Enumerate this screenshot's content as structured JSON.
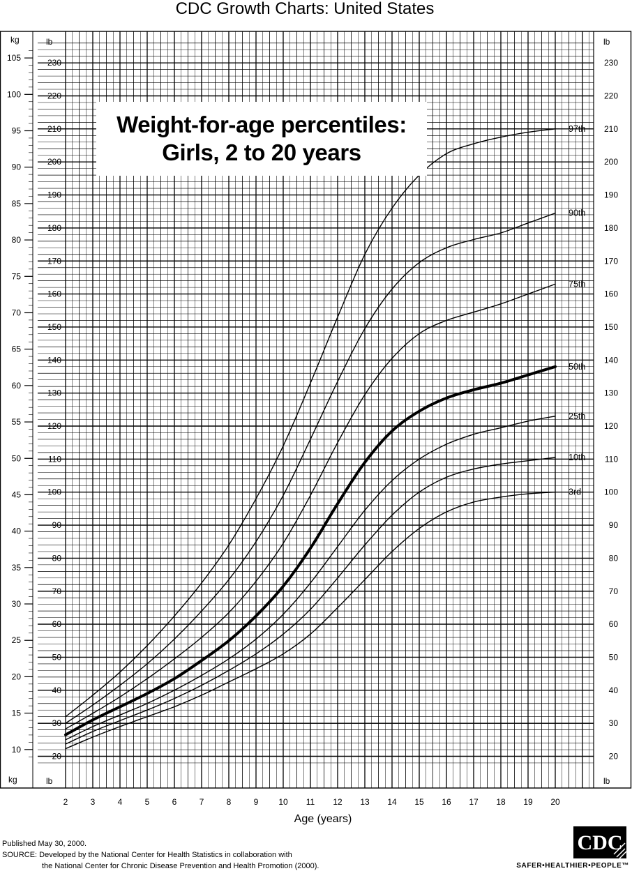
{
  "header": {
    "title": "CDC Growth Charts: United States"
  },
  "chart_data": {
    "type": "line",
    "title_line1": "Weight-for-age percentiles:",
    "title_line2": "Girls, 2 to 20 years",
    "xlabel": "Age (years)",
    "xlim": [
      2,
      20
    ],
    "x_ticks": [
      2,
      3,
      4,
      5,
      6,
      7,
      8,
      9,
      10,
      11,
      12,
      13,
      14,
      15,
      16,
      17,
      18,
      19,
      20
    ],
    "ylim_lb": [
      16,
      236
    ],
    "left_unit_top": "kg",
    "left_unit_bottom": "kg",
    "inner_unit_top": "lb",
    "inner_unit_bottom": "lb",
    "right_unit_top": "lb",
    "right_unit_bottom": "lb",
    "kg_ticks": [
      10,
      15,
      20,
      25,
      30,
      35,
      40,
      45,
      50,
      55,
      60,
      65,
      70,
      75,
      80,
      85,
      90,
      95,
      100,
      105
    ],
    "lb_ticks": [
      20,
      30,
      40,
      50,
      60,
      70,
      80,
      90,
      100,
      110,
      120,
      130,
      140,
      150,
      160,
      170,
      180,
      190,
      200,
      210,
      220,
      230
    ],
    "grid": true,
    "x": [
      2,
      3,
      4,
      5,
      6,
      7,
      8,
      9,
      10,
      11,
      12,
      13,
      14,
      15,
      16,
      17,
      18,
      19,
      20
    ],
    "series": [
      {
        "name": "97th",
        "values_lb": [
          32,
          38.5,
          45.5,
          53.5,
          62.5,
          72.5,
          84,
          98,
          114,
          133,
          153,
          172,
          186,
          196,
          202.5,
          205.5,
          207.5,
          209,
          210
        ],
        "bold": false
      },
      {
        "name": "90th",
        "values_lb": [
          30,
          35.5,
          41.5,
          48,
          55.5,
          64,
          73.5,
          85,
          99,
          116,
          133.5,
          149.5,
          161.5,
          169.5,
          174,
          176.5,
          178.5,
          181.5,
          184.5
        ],
        "bold": false
      },
      {
        "name": "75th",
        "values_lb": [
          28.3,
          33,
          38,
          43.5,
          49.5,
          56,
          63.5,
          73,
          84.5,
          99,
          115,
          129.5,
          140.5,
          148,
          152,
          154.5,
          157,
          160,
          163
        ],
        "bold": false
      },
      {
        "name": "50th",
        "values_lb": [
          26.5,
          31,
          35,
          39,
          43.5,
          49,
          55,
          62.5,
          71.5,
          83,
          96.5,
          109,
          118.5,
          124.5,
          128.5,
          131,
          133,
          135.5,
          138
        ],
        "bold": true
      },
      {
        "name": "25th",
        "values_lb": [
          25,
          29,
          32.5,
          36,
          40,
          44.5,
          49.5,
          55.5,
          63,
          72.5,
          83.5,
          94.5,
          103.5,
          110,
          114.5,
          117.5,
          119.5,
          121.5,
          123
        ],
        "bold": false
      },
      {
        "name": "10th",
        "values_lb": [
          23.7,
          27.5,
          30.8,
          34,
          37.5,
          41.5,
          46,
          51,
          57,
          64.5,
          74,
          84,
          93,
          100,
          104.5,
          107,
          108.5,
          109.5,
          110.5
        ],
        "bold": false
      },
      {
        "name": "3rd",
        "values_lb": [
          22.3,
          25.8,
          29,
          32,
          35,
          38.5,
          42.5,
          46.5,
          51,
          57,
          65,
          73.5,
          82,
          89,
          94,
          97,
          98.5,
          99.5,
          100
        ],
        "bold": false
      }
    ]
  },
  "footer": {
    "published": "Published May 30, 2000.",
    "source_line1": "SOURCE: Developed by the National Center for Health Statistics in collaboration with",
    "source_line2": "the National Center for Chronic Disease Prevention and Health Promotion (2000).",
    "logo_text": "CDC",
    "tagline": "SAFER•HEALTHIER•PEOPLE™"
  }
}
